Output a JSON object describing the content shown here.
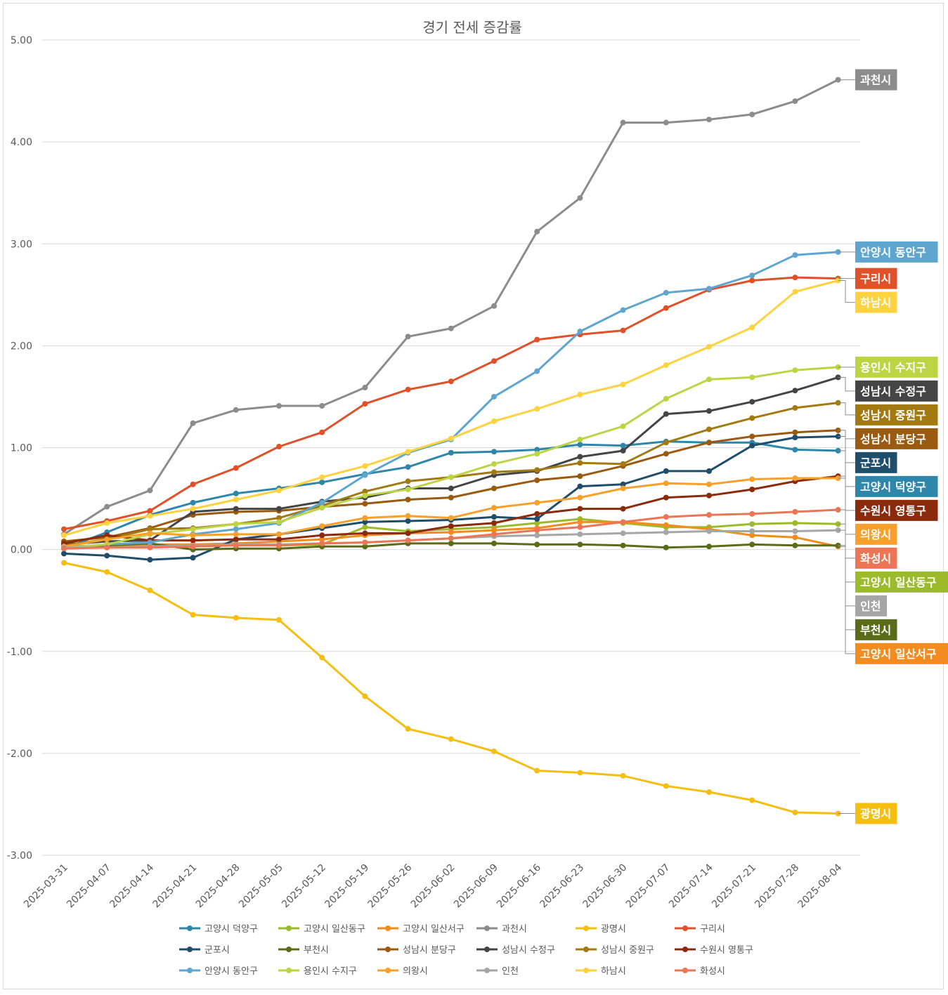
{
  "chart_data": {
    "type": "line",
    "title": "경기 전세 증감률",
    "xlabel": "",
    "ylabel": "",
    "ylim": [
      -3.0,
      5.0
    ],
    "yticks": [
      "5.00",
      "4.00",
      "3.00",
      "2.00",
      "1.00",
      "0.00",
      "-1.00",
      "-2.00",
      "-3.00"
    ],
    "ytick_values": [
      5,
      4,
      3,
      2,
      1,
      0,
      -1,
      -2,
      -3
    ],
    "grid": true,
    "legend_position": "bottom",
    "end_labels": true,
    "x": [
      "2025-03-31",
      "2025-04-07",
      "2025-04-14",
      "2025-04-21",
      "2025-04-28",
      "2025-05-05",
      "2025-05-12",
      "2025-05-19",
      "2025-05-26",
      "2025-06-02",
      "2025-06-09",
      "2025-06-16",
      "2025-06-23",
      "2025-06-30",
      "2025-07-07",
      "2025-07-14",
      "2025-07-21",
      "2025-07-28",
      "2025-08-04"
    ],
    "series": [
      {
        "name": "고양시 덕양구",
        "color": "#2e86ab",
        "values": [
          0.01,
          0.17,
          0.34,
          0.46,
          0.55,
          0.6,
          0.66,
          0.74,
          0.81,
          0.95,
          0.96,
          0.98,
          1.03,
          1.02,
          1.06,
          1.05,
          1.05,
          0.98,
          0.97
        ]
      },
      {
        "name": "고양시 일산동구",
        "color": "#9bbb2a",
        "values": [
          0.02,
          0.03,
          0.04,
          0.05,
          0.05,
          0.04,
          0.05,
          0.22,
          0.18,
          0.2,
          0.22,
          0.26,
          0.3,
          0.26,
          0.22,
          0.22,
          0.25,
          0.26,
          0.25
        ]
      },
      {
        "name": "고양시 일산서구",
        "color": "#f28c1e",
        "values": [
          0.01,
          0.05,
          0.05,
          0.05,
          0.06,
          0.08,
          0.1,
          0.14,
          0.16,
          0.17,
          0.19,
          0.21,
          0.27,
          0.27,
          0.24,
          0.2,
          0.14,
          0.12,
          0.03
        ]
      },
      {
        "name": "과천시",
        "color": "#8c8c8c",
        "values": [
          0.15,
          0.42,
          0.58,
          1.24,
          1.37,
          1.41,
          1.41,
          1.59,
          2.09,
          2.17,
          2.39,
          3.12,
          3.45,
          4.19,
          4.19,
          4.22,
          4.27,
          4.4,
          4.61
        ]
      },
      {
        "name": "광명시",
        "color": "#f5bf12",
        "values": [
          -0.13,
          -0.22,
          -0.4,
          -0.64,
          -0.67,
          -0.69,
          -1.06,
          -1.44,
          -1.76,
          -1.86,
          -1.98,
          -2.17,
          -2.19,
          -2.22,
          -2.32,
          -2.38,
          -2.46,
          -2.58,
          -2.59
        ]
      },
      {
        "name": "구리시",
        "color": "#e0512a",
        "values": [
          0.2,
          0.28,
          0.38,
          0.64,
          0.8,
          1.01,
          1.15,
          1.43,
          1.57,
          1.65,
          1.85,
          2.06,
          2.11,
          2.15,
          2.37,
          2.55,
          2.64,
          2.67,
          2.66
        ]
      },
      {
        "name": "군포시",
        "color": "#1f4e6b",
        "values": [
          -0.04,
          -0.06,
          -0.1,
          -0.08,
          0.1,
          0.15,
          0.21,
          0.27,
          0.28,
          0.29,
          0.32,
          0.3,
          0.62,
          0.64,
          0.77,
          0.77,
          1.02,
          1.1,
          1.11
        ]
      },
      {
        "name": "부천시",
        "color": "#5c6b18",
        "values": [
          0.03,
          0.04,
          0.06,
          0.0,
          0.01,
          0.01,
          0.03,
          0.03,
          0.06,
          0.06,
          0.06,
          0.05,
          0.05,
          0.04,
          0.02,
          0.03,
          0.05,
          0.04,
          0.04
        ]
      },
      {
        "name": "성남시 분당구",
        "color": "#9a5a10",
        "values": [
          0.08,
          0.12,
          0.21,
          0.34,
          0.37,
          0.38,
          0.42,
          0.45,
          0.49,
          0.51,
          0.6,
          0.68,
          0.72,
          0.82,
          0.94,
          1.05,
          1.11,
          1.15,
          1.17
        ]
      },
      {
        "name": "성남시 수정구",
        "color": "#454545",
        "values": [
          0.05,
          0.08,
          0.09,
          0.37,
          0.4,
          0.4,
          0.47,
          0.51,
          0.6,
          0.6,
          0.73,
          0.77,
          0.91,
          0.97,
          1.33,
          1.36,
          1.45,
          1.56,
          1.69
        ]
      },
      {
        "name": "성남시 중원구",
        "color": "#a37a12",
        "values": [
          0.04,
          0.1,
          0.2,
          0.21,
          0.25,
          0.31,
          0.43,
          0.57,
          0.67,
          0.71,
          0.76,
          0.78,
          0.85,
          0.84,
          1.05,
          1.18,
          1.29,
          1.39,
          1.44
        ]
      },
      {
        "name": "수원시 영통구",
        "color": "#8b2a0c",
        "values": [
          0.06,
          0.14,
          0.09,
          0.09,
          0.1,
          0.1,
          0.14,
          0.16,
          0.16,
          0.23,
          0.26,
          0.35,
          0.4,
          0.4,
          0.51,
          0.53,
          0.59,
          0.67,
          0.72
        ]
      },
      {
        "name": "안양시 동안구",
        "color": "#5ea6cf",
        "values": [
          0.02,
          0.05,
          0.07,
          0.15,
          0.2,
          0.26,
          0.46,
          0.73,
          0.95,
          1.08,
          1.5,
          1.75,
          2.14,
          2.35,
          2.52,
          2.56,
          2.69,
          2.89,
          2.92
        ]
      },
      {
        "name": "용인시 수지구",
        "color": "#bdd444",
        "values": [
          0.02,
          0.05,
          0.15,
          0.2,
          0.25,
          0.27,
          0.41,
          0.53,
          0.59,
          0.71,
          0.84,
          0.94,
          1.08,
          1.21,
          1.48,
          1.67,
          1.69,
          1.76,
          1.79
        ]
      },
      {
        "name": "의왕시",
        "color": "#f7a02c",
        "values": [
          0.03,
          0.1,
          0.16,
          0.14,
          0.15,
          0.15,
          0.23,
          0.31,
          0.33,
          0.31,
          0.41,
          0.46,
          0.51,
          0.6,
          0.65,
          0.64,
          0.69,
          0.7,
          0.7
        ]
      },
      {
        "name": "인천",
        "color": "#a6a6a6",
        "values": [
          0.02,
          0.02,
          0.03,
          0.04,
          0.05,
          0.05,
          0.06,
          0.07,
          0.09,
          0.11,
          0.13,
          0.14,
          0.15,
          0.16,
          0.17,
          0.18,
          0.18,
          0.18,
          0.19
        ]
      },
      {
        "name": "하남시",
        "color": "#ffd23f",
        "values": [
          0.14,
          0.26,
          0.33,
          0.4,
          0.49,
          0.58,
          0.71,
          0.82,
          0.96,
          1.09,
          1.26,
          1.38,
          1.52,
          1.62,
          1.81,
          1.99,
          2.18,
          2.53,
          2.64
        ]
      },
      {
        "name": "화성시",
        "color": "#ec7555",
        "values": [
          0.01,
          0.02,
          0.02,
          0.03,
          0.04,
          0.04,
          0.06,
          0.07,
          0.09,
          0.11,
          0.15,
          0.19,
          0.22,
          0.27,
          0.32,
          0.34,
          0.35,
          0.37,
          0.39
        ]
      }
    ],
    "end_label_order": [
      "과천시",
      "안양시 동안구",
      "구리시",
      "하남시",
      "용인시 수지구",
      "성남시 수정구",
      "성남시 중원구",
      "성남시 분당구",
      "군포시",
      "고양시 덕양구",
      "수원시 영통구",
      "의왕시",
      "화성시",
      "고양시 일산동구",
      "인천",
      "부천시",
      "고양시 일산서구",
      "광명시"
    ],
    "legend_order": [
      "고양시 덕양구",
      "고양시 일산동구",
      "고양시 일산서구",
      "과천시",
      "광명시",
      "구리시",
      "군포시",
      "부천시",
      "성남시 분당구",
      "성남시 수정구",
      "성남시 중원구",
      "수원시 영통구",
      "안양시 동안구",
      "용인시 수지구",
      "의왕시",
      "인천",
      "하남시",
      "화성시"
    ]
  }
}
